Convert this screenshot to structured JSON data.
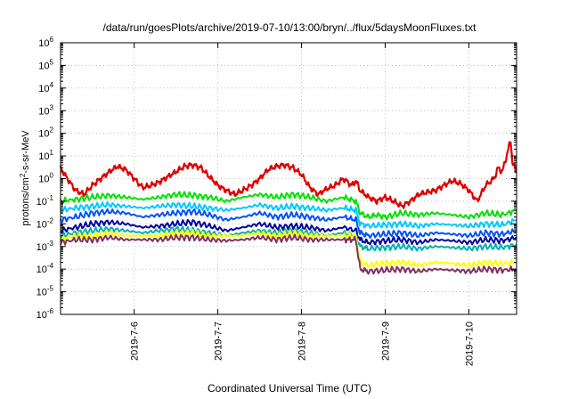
{
  "chart_data": {
    "type": "line",
    "title": "/data/run/goesPlots/archive/2019-07-10/13:00/bryn/../flux/5daysMoonFluxes.txt",
    "xlabel": "Coordinated Universal Time (UTC)",
    "ylabel": {
      "pre": "protons/cm",
      "sup": "2",
      "post": "-s-sr-MeV"
    },
    "yscale": "log",
    "ylim": [
      1e-06,
      1000000.0
    ],
    "y_ticks": [
      {
        "value": 1e-06,
        "base": "10",
        "exp": "-6"
      },
      {
        "value": 1e-05,
        "base": "10",
        "exp": "-5"
      },
      {
        "value": 0.0001,
        "base": "10",
        "exp": "-4"
      },
      {
        "value": 0.001,
        "base": "10",
        "exp": "-3"
      },
      {
        "value": 0.01,
        "base": "10",
        "exp": "-2"
      },
      {
        "value": 0.1,
        "base": "10",
        "exp": "-1"
      },
      {
        "value": 1,
        "base": "10",
        "exp": "0"
      },
      {
        "value": 10,
        "base": "10",
        "exp": "1"
      },
      {
        "value": 100,
        "base": "10",
        "exp": "2"
      },
      {
        "value": 1000,
        "base": "10",
        "exp": "3"
      },
      {
        "value": 10000,
        "base": "10",
        "exp": "4"
      },
      {
        "value": 100000,
        "base": "10",
        "exp": "5"
      },
      {
        "value": 1000000,
        "base": "10",
        "exp": "6"
      }
    ],
    "xlim": [
      5.12,
      10.57
    ],
    "x_ticks": [
      {
        "value": 6,
        "label": "2019-7-6"
      },
      {
        "value": 7,
        "label": "2019-7-7"
      },
      {
        "value": 8,
        "label": "2019-7-8"
      },
      {
        "value": 9,
        "label": "2019-7-9"
      },
      {
        "value": 10,
        "label": "2019-7-10"
      }
    ],
    "grid": true,
    "legend": "none",
    "series": [
      {
        "color": "#e00000",
        "points": [
          [
            5.12,
            3.0
          ],
          [
            5.2,
            1.0
          ],
          [
            5.3,
            0.3
          ],
          [
            5.4,
            0.2
          ],
          [
            5.5,
            0.5
          ],
          [
            5.6,
            1.0
          ],
          [
            5.7,
            2.0
          ],
          [
            5.8,
            3.5
          ],
          [
            5.9,
            2.5
          ],
          [
            6.0,
            1.0
          ],
          [
            6.1,
            0.4
          ],
          [
            6.2,
            0.5
          ],
          [
            6.3,
            0.7
          ],
          [
            6.4,
            1.2
          ],
          [
            6.5,
            2.0
          ],
          [
            6.6,
            3.5
          ],
          [
            6.7,
            4.0
          ],
          [
            6.8,
            3.0
          ],
          [
            6.9,
            1.2
          ],
          [
            7.0,
            0.5
          ],
          [
            7.1,
            0.3
          ],
          [
            7.2,
            0.2
          ],
          [
            7.3,
            0.3
          ],
          [
            7.4,
            0.5
          ],
          [
            7.5,
            1.0
          ],
          [
            7.6,
            2.5
          ],
          [
            7.7,
            3.5
          ],
          [
            7.8,
            4.0
          ],
          [
            7.9,
            3.0
          ],
          [
            8.0,
            1.5
          ],
          [
            8.1,
            0.4
          ],
          [
            8.2,
            0.2
          ],
          [
            8.3,
            0.35
          ],
          [
            8.4,
            0.5
          ],
          [
            8.5,
            1.0
          ],
          [
            8.6,
            0.5
          ],
          [
            8.65,
            0.8
          ],
          [
            8.7,
            0.3
          ],
          [
            8.8,
            0.15
          ],
          [
            8.9,
            0.1
          ],
          [
            9.0,
            0.15
          ],
          [
            9.1,
            0.1
          ],
          [
            9.2,
            0.06
          ],
          [
            9.3,
            0.1
          ],
          [
            9.4,
            0.2
          ],
          [
            9.5,
            0.25
          ],
          [
            9.6,
            0.3
          ],
          [
            9.7,
            0.5
          ],
          [
            9.8,
            0.8
          ],
          [
            9.9,
            0.6
          ],
          [
            10.0,
            0.3
          ],
          [
            10.1,
            0.1
          ],
          [
            10.2,
            0.5
          ],
          [
            10.3,
            1.0
          ],
          [
            10.35,
            3.0
          ],
          [
            10.4,
            2.0
          ],
          [
            10.45,
            10
          ],
          [
            10.5,
            50
          ],
          [
            10.52,
            5
          ],
          [
            10.57,
            2.0
          ]
        ]
      },
      {
        "color": "#00e000",
        "points": [
          [
            5.12,
            0.1
          ],
          [
            5.3,
            0.12
          ],
          [
            5.5,
            0.15
          ],
          [
            5.7,
            0.18
          ],
          [
            5.9,
            0.15
          ],
          [
            6.1,
            0.12
          ],
          [
            6.3,
            0.15
          ],
          [
            6.5,
            0.2
          ],
          [
            6.7,
            0.18
          ],
          [
            6.9,
            0.15
          ],
          [
            7.1,
            0.1
          ],
          [
            7.3,
            0.15
          ],
          [
            7.5,
            0.2
          ],
          [
            7.7,
            0.15
          ],
          [
            7.9,
            0.2
          ],
          [
            8.1,
            0.15
          ],
          [
            8.3,
            0.1
          ],
          [
            8.5,
            0.15
          ],
          [
            8.65,
            0.1
          ],
          [
            8.7,
            0.03
          ],
          [
            8.8,
            0.02
          ],
          [
            8.9,
            0.025
          ],
          [
            9.0,
            0.02
          ],
          [
            9.2,
            0.03
          ],
          [
            9.4,
            0.025
          ],
          [
            9.6,
            0.03
          ],
          [
            9.8,
            0.025
          ],
          [
            10.0,
            0.02
          ],
          [
            10.2,
            0.03
          ],
          [
            10.4,
            0.025
          ],
          [
            10.57,
            0.04
          ]
        ]
      },
      {
        "color": "#00c8ff",
        "points": [
          [
            5.12,
            0.04
          ],
          [
            5.3,
            0.05
          ],
          [
            5.5,
            0.06
          ],
          [
            5.7,
            0.07
          ],
          [
            5.9,
            0.06
          ],
          [
            6.1,
            0.05
          ],
          [
            6.3,
            0.06
          ],
          [
            6.5,
            0.07
          ],
          [
            6.7,
            0.06
          ],
          [
            6.9,
            0.05
          ],
          [
            7.1,
            0.04
          ],
          [
            7.3,
            0.05
          ],
          [
            7.5,
            0.07
          ],
          [
            7.7,
            0.05
          ],
          [
            7.9,
            0.06
          ],
          [
            8.1,
            0.05
          ],
          [
            8.3,
            0.04
          ],
          [
            8.5,
            0.05
          ],
          [
            8.65,
            0.04
          ],
          [
            8.7,
            0.01
          ],
          [
            8.8,
            0.008
          ],
          [
            9.0,
            0.009
          ],
          [
            9.2,
            0.01
          ],
          [
            9.4,
            0.008
          ],
          [
            9.6,
            0.01
          ],
          [
            9.8,
            0.009
          ],
          [
            10.0,
            0.008
          ],
          [
            10.2,
            0.01
          ],
          [
            10.4,
            0.009
          ],
          [
            10.57,
            0.015
          ]
        ]
      },
      {
        "color": "#0050ff",
        "points": [
          [
            5.12,
            0.015
          ],
          [
            5.3,
            0.02
          ],
          [
            5.5,
            0.03
          ],
          [
            5.7,
            0.035
          ],
          [
            5.9,
            0.03
          ],
          [
            6.1,
            0.02
          ],
          [
            6.3,
            0.025
          ],
          [
            6.5,
            0.03
          ],
          [
            6.7,
            0.035
          ],
          [
            6.9,
            0.025
          ],
          [
            7.1,
            0.015
          ],
          [
            7.3,
            0.02
          ],
          [
            7.5,
            0.03
          ],
          [
            7.7,
            0.02
          ],
          [
            7.9,
            0.025
          ],
          [
            8.1,
            0.02
          ],
          [
            8.3,
            0.015
          ],
          [
            8.5,
            0.02
          ],
          [
            8.65,
            0.015
          ],
          [
            8.7,
            0.004
          ],
          [
            8.8,
            0.003
          ],
          [
            9.0,
            0.0035
          ],
          [
            9.2,
            0.004
          ],
          [
            9.4,
            0.003
          ],
          [
            9.6,
            0.004
          ],
          [
            9.8,
            0.0035
          ],
          [
            10.0,
            0.003
          ],
          [
            10.2,
            0.004
          ],
          [
            10.4,
            0.0035
          ],
          [
            10.57,
            0.005
          ]
        ]
      },
      {
        "color": "#0000a0",
        "points": [
          [
            5.12,
            0.005
          ],
          [
            5.3,
            0.007
          ],
          [
            5.5,
            0.01
          ],
          [
            5.7,
            0.012
          ],
          [
            5.9,
            0.01
          ],
          [
            6.1,
            0.007
          ],
          [
            6.3,
            0.008
          ],
          [
            6.5,
            0.01
          ],
          [
            6.7,
            0.012
          ],
          [
            6.9,
            0.008
          ],
          [
            7.1,
            0.005
          ],
          [
            7.3,
            0.007
          ],
          [
            7.5,
            0.01
          ],
          [
            7.7,
            0.007
          ],
          [
            7.9,
            0.008
          ],
          [
            8.1,
            0.007
          ],
          [
            8.3,
            0.005
          ],
          [
            8.5,
            0.007
          ],
          [
            8.65,
            0.005
          ],
          [
            8.7,
            0.002
          ],
          [
            8.8,
            0.0015
          ],
          [
            9.0,
            0.0018
          ],
          [
            9.2,
            0.002
          ],
          [
            9.4,
            0.0015
          ],
          [
            9.6,
            0.002
          ],
          [
            9.8,
            0.0018
          ],
          [
            10.0,
            0.0015
          ],
          [
            10.2,
            0.002
          ],
          [
            10.4,
            0.0018
          ],
          [
            10.57,
            0.0025
          ]
        ]
      },
      {
        "color": "#00b0b0",
        "points": [
          [
            5.12,
            0.003
          ],
          [
            5.3,
            0.004
          ],
          [
            5.5,
            0.005
          ],
          [
            5.7,
            0.006
          ],
          [
            5.9,
            0.005
          ],
          [
            6.1,
            0.004
          ],
          [
            6.3,
            0.005
          ],
          [
            6.5,
            0.006
          ],
          [
            6.7,
            0.005
          ],
          [
            6.9,
            0.004
          ],
          [
            7.1,
            0.003
          ],
          [
            7.3,
            0.004
          ],
          [
            7.5,
            0.005
          ],
          [
            7.7,
            0.004
          ],
          [
            7.9,
            0.005
          ],
          [
            8.1,
            0.004
          ],
          [
            8.3,
            0.003
          ],
          [
            8.5,
            0.004
          ],
          [
            8.65,
            0.003
          ],
          [
            8.7,
            0.001
          ],
          [
            8.8,
            0.0008
          ],
          [
            9.0,
            0.0009
          ],
          [
            9.2,
            0.001
          ],
          [
            9.4,
            0.0008
          ],
          [
            9.6,
            0.001
          ],
          [
            9.8,
            0.0009
          ],
          [
            10.0,
            0.0008
          ],
          [
            10.2,
            0.001
          ],
          [
            10.4,
            0.0009
          ],
          [
            10.57,
            0.0012
          ]
        ]
      },
      {
        "color": "#ffff00",
        "points": [
          [
            5.12,
            0.002
          ],
          [
            5.3,
            0.003
          ],
          [
            5.5,
            0.003
          ],
          [
            5.7,
            0.004
          ],
          [
            5.9,
            0.003
          ],
          [
            6.1,
            0.003
          ],
          [
            6.3,
            0.003
          ],
          [
            6.5,
            0.004
          ],
          [
            6.7,
            0.004
          ],
          [
            6.9,
            0.003
          ],
          [
            7.1,
            0.003
          ],
          [
            7.3,
            0.003
          ],
          [
            7.5,
            0.004
          ],
          [
            7.7,
            0.003
          ],
          [
            7.9,
            0.004
          ],
          [
            8.1,
            0.003
          ],
          [
            8.3,
            0.003
          ],
          [
            8.5,
            0.003
          ],
          [
            8.65,
            0.003
          ],
          [
            8.7,
            0.0002
          ],
          [
            8.8,
            0.00015
          ],
          [
            9.0,
            0.00018
          ],
          [
            9.2,
            0.0002
          ],
          [
            9.4,
            0.00015
          ],
          [
            9.6,
            0.0002
          ],
          [
            9.8,
            0.00018
          ],
          [
            10.0,
            0.00015
          ],
          [
            10.2,
            0.0002
          ],
          [
            10.4,
            0.00018
          ],
          [
            10.57,
            0.0002
          ]
        ]
      },
      {
        "color": "#803060",
        "points": [
          [
            5.12,
            0.0015
          ],
          [
            5.3,
            0.002
          ],
          [
            5.5,
            0.002
          ],
          [
            5.7,
            0.0025
          ],
          [
            5.9,
            0.002
          ],
          [
            6.1,
            0.002
          ],
          [
            6.3,
            0.002
          ],
          [
            6.5,
            0.0025
          ],
          [
            6.7,
            0.0025
          ],
          [
            6.9,
            0.002
          ],
          [
            7.1,
            0.0018
          ],
          [
            7.3,
            0.002
          ],
          [
            7.5,
            0.0025
          ],
          [
            7.7,
            0.002
          ],
          [
            7.9,
            0.0025
          ],
          [
            8.1,
            0.002
          ],
          [
            8.3,
            0.002
          ],
          [
            8.5,
            0.002
          ],
          [
            8.65,
            0.002
          ],
          [
            8.7,
            0.0001
          ],
          [
            8.8,
            8e-05
          ],
          [
            9.0,
            9e-05
          ],
          [
            9.2,
            0.0001
          ],
          [
            9.4,
            8e-05
          ],
          [
            9.6,
            0.0001
          ],
          [
            9.8,
            9e-05
          ],
          [
            10.0,
            8e-05
          ],
          [
            10.2,
            0.0001
          ],
          [
            10.4,
            9e-05
          ],
          [
            10.57,
            0.0001
          ]
        ]
      }
    ]
  }
}
